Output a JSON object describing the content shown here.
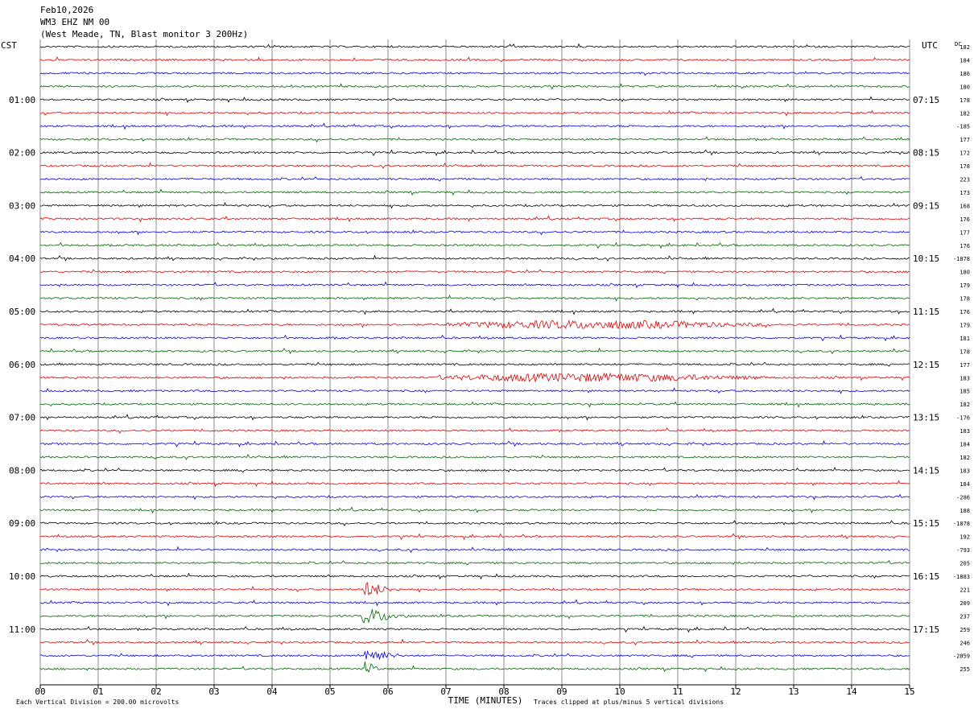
{
  "header": {
    "date": "Feb10,2026",
    "station": "WM3 EHZ NM 00",
    "location": "(West Meade, TN, Blast monitor 3 200Hz)"
  },
  "colors": {
    "trace_colors": [
      "#000000",
      "#e00000",
      "#0000e0",
      "#006400"
    ],
    "grid": "#8c8c8c",
    "background": "#ffffff"
  },
  "chart_data": {
    "type": "line",
    "subtype": "helicorder",
    "title": "Feb10,2026 WM3 EHZ NM 00 (West Meade, TN, Blast monitor 3 200Hz)",
    "left_axis_label": "CST",
    "right_axis_label": "UTC",
    "dc_label": "DC",
    "xlabel": "TIME (MINUTES)",
    "xlim": [
      0,
      15
    ],
    "x_ticks": [
      "00",
      "01",
      "02",
      "03",
      "04",
      "05",
      "06",
      "07",
      "08",
      "09",
      "10",
      "11",
      "12",
      "13",
      "14",
      "15"
    ],
    "rows_per_hour": 4,
    "minutes_per_row": 15,
    "left_hour_labels": [
      "01:00",
      "02:00",
      "03:00",
      "04:00",
      "05:00",
      "06:00",
      "07:00",
      "08:00",
      "09:00",
      "10:00",
      "11:00"
    ],
    "right_hour_labels": [
      "07:15",
      "08:15",
      "09:15",
      "10:15",
      "11:15",
      "12:15",
      "13:15",
      "14:15",
      "15:15",
      "16:15",
      "17:15"
    ],
    "dc_offsets": [
      "182",
      "184",
      "186",
      "180",
      "178",
      "182",
      "-185",
      "177",
      "172",
      "178",
      "223",
      "173",
      "168",
      "176",
      "177",
      "176",
      "-1878",
      "180",
      "179",
      "178",
      "176",
      "179",
      "181",
      "178",
      "177",
      "183",
      "185",
      "182",
      "-176",
      "183",
      "184",
      "182",
      "183",
      "184",
      "-286",
      "188",
      "-1878",
      "192",
      "-793",
      "205",
      "-1883",
      "221",
      "209",
      "237",
      "259",
      "246",
      "-2859",
      "255"
    ],
    "events": [
      {
        "row": 21,
        "start_min": 7.0,
        "end_min": 12.6,
        "amplitude_divisions": 2.5,
        "kind": "sustained noise burst"
      },
      {
        "row": 25,
        "start_min": 6.8,
        "end_min": 12.5,
        "amplitude_divisions": 2.5,
        "kind": "sustained noise burst"
      },
      {
        "row": 41,
        "start_min": 5.55,
        "end_min": 6.2,
        "amplitude_divisions": 5,
        "kind": "clipped transient"
      },
      {
        "row": 43,
        "start_min": 5.55,
        "end_min": 6.4,
        "amplitude_divisions": 5,
        "kind": "clipped transient"
      },
      {
        "row": 46,
        "start_min": 5.6,
        "end_min": 6.2,
        "amplitude_divisions": 5,
        "kind": "clipped transient"
      },
      {
        "row": 47,
        "start_min": 5.6,
        "end_min": 5.9,
        "amplitude_divisions": 5,
        "kind": "clipped transient"
      }
    ],
    "scale_note": "Each Vertical Division =  200.00 microvolts",
    "clip_note": "Traces clipped at plus/minus 5 vertical divisions",
    "grid": true
  }
}
